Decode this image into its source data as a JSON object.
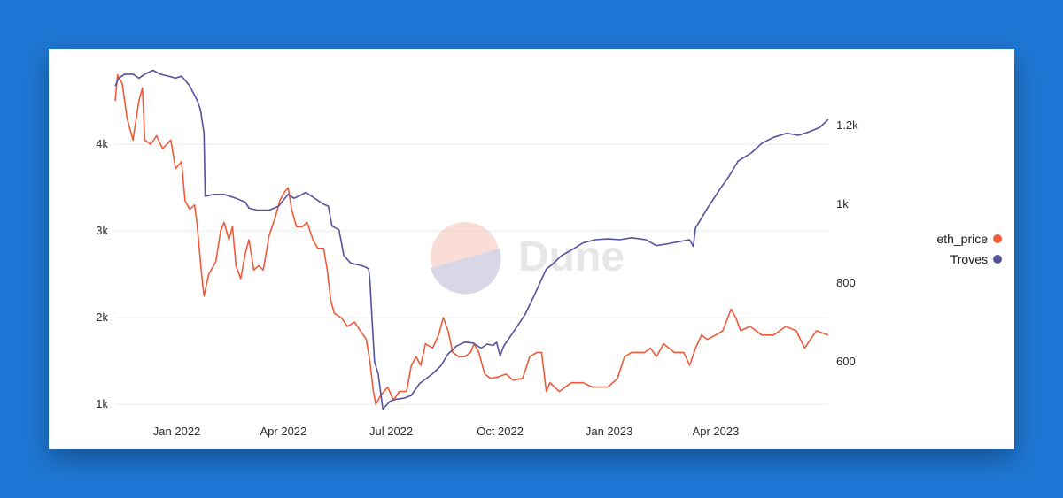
{
  "chart_data": {
    "type": "line",
    "title": "",
    "xlabel": "",
    "ylabel": "",
    "x_range": [
      "2021-11-10",
      "2023-07-05"
    ],
    "x_ticks": [
      {
        "date": "2022-01-01",
        "label": "Jan 2022"
      },
      {
        "date": "2022-04-01",
        "label": "Apr 2022"
      },
      {
        "date": "2022-07-01",
        "label": "Jul 2022"
      },
      {
        "date": "2022-10-01",
        "label": "Oct 2022"
      },
      {
        "date": "2023-01-01",
        "label": "Jan 2023"
      },
      {
        "date": "2023-04-01",
        "label": "Apr 2023"
      }
    ],
    "y_left": {
      "range": [
        900,
        4900
      ],
      "ticks": [
        {
          "value": 1000,
          "label": "1k"
        },
        {
          "value": 2000,
          "label": "2k"
        },
        {
          "value": 3000,
          "label": "3k"
        },
        {
          "value": 4000,
          "label": "4k"
        }
      ]
    },
    "y_right": {
      "range": [
        470,
        1350
      ],
      "ticks": [
        {
          "value": 600,
          "label": "600"
        },
        {
          "value": 800,
          "label": "800"
        },
        {
          "value": 1000,
          "label": "1k"
        },
        {
          "value": 1200,
          "label": "1.2k"
        }
      ]
    },
    "grid": true,
    "legend_position": "right",
    "watermark": "Dune",
    "series": [
      {
        "name": "eth_price",
        "axis": "left",
        "color": "#ef5b3a",
        "points": [
          [
            "2021-11-10",
            4500
          ],
          [
            "2021-11-12",
            4800
          ],
          [
            "2021-11-16",
            4700
          ],
          [
            "2021-11-20",
            4300
          ],
          [
            "2021-11-25",
            4050
          ],
          [
            "2021-11-30",
            4500
          ],
          [
            "2021-12-03",
            4650
          ],
          [
            "2021-12-05",
            4050
          ],
          [
            "2021-12-10",
            4000
          ],
          [
            "2021-12-15",
            4100
          ],
          [
            "2021-12-20",
            3950
          ],
          [
            "2021-12-27",
            4050
          ],
          [
            "2021-12-31",
            3720
          ],
          [
            "2022-01-05",
            3800
          ],
          [
            "2022-01-08",
            3350
          ],
          [
            "2022-01-12",
            3250
          ],
          [
            "2022-01-16",
            3300
          ],
          [
            "2022-01-18",
            3100
          ],
          [
            "2022-01-22",
            2500
          ],
          [
            "2022-01-24",
            2250
          ],
          [
            "2022-01-28",
            2500
          ],
          [
            "2022-02-03",
            2650
          ],
          [
            "2022-02-07",
            3000
          ],
          [
            "2022-02-10",
            3100
          ],
          [
            "2022-02-14",
            2900
          ],
          [
            "2022-02-17",
            3050
          ],
          [
            "2022-02-20",
            2600
          ],
          [
            "2022-02-24",
            2450
          ],
          [
            "2022-02-28",
            2750
          ],
          [
            "2022-03-03",
            2900
          ],
          [
            "2022-03-07",
            2550
          ],
          [
            "2022-03-11",
            2600
          ],
          [
            "2022-03-15",
            2550
          ],
          [
            "2022-03-20",
            2950
          ],
          [
            "2022-03-25",
            3150
          ],
          [
            "2022-03-29",
            3350
          ],
          [
            "2022-04-02",
            3450
          ],
          [
            "2022-04-05",
            3500
          ],
          [
            "2022-04-08",
            3250
          ],
          [
            "2022-04-12",
            3050
          ],
          [
            "2022-04-17",
            3050
          ],
          [
            "2022-04-21",
            3100
          ],
          [
            "2022-04-26",
            2900
          ],
          [
            "2022-04-30",
            2800
          ],
          [
            "2022-05-05",
            2800
          ],
          [
            "2022-05-08",
            2550
          ],
          [
            "2022-05-11",
            2200
          ],
          [
            "2022-05-14",
            2050
          ],
          [
            "2022-05-20",
            2000
          ],
          [
            "2022-05-25",
            1900
          ],
          [
            "2022-05-31",
            1950
          ],
          [
            "2022-06-05",
            1850
          ],
          [
            "2022-06-10",
            1750
          ],
          [
            "2022-06-13",
            1500
          ],
          [
            "2022-06-16",
            1150
          ],
          [
            "2022-06-18",
            1000
          ],
          [
            "2022-06-22",
            1100
          ],
          [
            "2022-06-28",
            1200
          ],
          [
            "2022-07-03",
            1050
          ],
          [
            "2022-07-08",
            1150
          ],
          [
            "2022-07-14",
            1150
          ],
          [
            "2022-07-18",
            1450
          ],
          [
            "2022-07-22",
            1550
          ],
          [
            "2022-07-26",
            1450
          ],
          [
            "2022-07-30",
            1700
          ],
          [
            "2022-08-05",
            1650
          ],
          [
            "2022-08-10",
            1800
          ],
          [
            "2022-08-14",
            2000
          ],
          [
            "2022-08-18",
            1850
          ],
          [
            "2022-08-22",
            1600
          ],
          [
            "2022-08-27",
            1550
          ],
          [
            "2022-09-01",
            1550
          ],
          [
            "2022-09-06",
            1600
          ],
          [
            "2022-09-09",
            1700
          ],
          [
            "2022-09-13",
            1600
          ],
          [
            "2022-09-18",
            1350
          ],
          [
            "2022-09-23",
            1300
          ],
          [
            "2022-09-30",
            1320
          ],
          [
            "2022-10-06",
            1350
          ],
          [
            "2022-10-12",
            1280
          ],
          [
            "2022-10-20",
            1300
          ],
          [
            "2022-10-26",
            1550
          ],
          [
            "2022-11-01",
            1600
          ],
          [
            "2022-11-05",
            1600
          ],
          [
            "2022-11-09",
            1150
          ],
          [
            "2022-11-12",
            1250
          ],
          [
            "2022-11-20",
            1150
          ],
          [
            "2022-11-30",
            1250
          ],
          [
            "2022-12-10",
            1250
          ],
          [
            "2022-12-18",
            1200
          ],
          [
            "2022-12-31",
            1200
          ],
          [
            "2023-01-08",
            1300
          ],
          [
            "2023-01-14",
            1550
          ],
          [
            "2023-01-20",
            1600
          ],
          [
            "2023-01-31",
            1600
          ],
          [
            "2023-02-05",
            1650
          ],
          [
            "2023-02-10",
            1550
          ],
          [
            "2023-02-16",
            1700
          ],
          [
            "2023-02-25",
            1600
          ],
          [
            "2023-03-05",
            1600
          ],
          [
            "2023-03-10",
            1450
          ],
          [
            "2023-03-15",
            1650
          ],
          [
            "2023-03-20",
            1800
          ],
          [
            "2023-03-25",
            1750
          ],
          [
            "2023-04-01",
            1800
          ],
          [
            "2023-04-07",
            1850
          ],
          [
            "2023-04-14",
            2100
          ],
          [
            "2023-04-18",
            2000
          ],
          [
            "2023-04-22",
            1850
          ],
          [
            "2023-04-30",
            1900
          ],
          [
            "2023-05-10",
            1800
          ],
          [
            "2023-05-20",
            1800
          ],
          [
            "2023-05-30",
            1900
          ],
          [
            "2023-06-08",
            1850
          ],
          [
            "2023-06-15",
            1650
          ],
          [
            "2023-06-20",
            1750
          ],
          [
            "2023-06-25",
            1850
          ],
          [
            "2023-07-05",
            1800
          ]
        ]
      },
      {
        "name": "Troves",
        "axis": "right",
        "color": "#54529a",
        "points": [
          [
            "2021-11-10",
            1300
          ],
          [
            "2021-11-13",
            1320
          ],
          [
            "2021-11-18",
            1330
          ],
          [
            "2021-11-25",
            1330
          ],
          [
            "2021-11-30",
            1320
          ],
          [
            "2021-12-05",
            1330
          ],
          [
            "2021-12-12",
            1340
          ],
          [
            "2021-12-18",
            1330
          ],
          [
            "2021-12-25",
            1325
          ],
          [
            "2021-12-31",
            1320
          ],
          [
            "2022-01-05",
            1325
          ],
          [
            "2022-01-08",
            1315
          ],
          [
            "2022-01-12",
            1300
          ],
          [
            "2022-01-18",
            1265
          ],
          [
            "2022-01-21",
            1240
          ],
          [
            "2022-01-24",
            1180
          ],
          [
            "2022-01-25",
            1020
          ],
          [
            "2022-02-01",
            1025
          ],
          [
            "2022-02-10",
            1025
          ],
          [
            "2022-02-20",
            1015
          ],
          [
            "2022-02-28",
            1005
          ],
          [
            "2022-03-03",
            990
          ],
          [
            "2022-03-10",
            985
          ],
          [
            "2022-03-20",
            985
          ],
          [
            "2022-03-28",
            995
          ],
          [
            "2022-04-05",
            1025
          ],
          [
            "2022-04-10",
            1015
          ],
          [
            "2022-04-15",
            1022
          ],
          [
            "2022-04-20",
            1030
          ],
          [
            "2022-04-25",
            1020
          ],
          [
            "2022-04-30",
            1010
          ],
          [
            "2022-05-05",
            1000
          ],
          [
            "2022-05-09",
            995
          ],
          [
            "2022-05-12",
            945
          ],
          [
            "2022-05-18",
            935
          ],
          [
            "2022-05-22",
            870
          ],
          [
            "2022-05-28",
            850
          ],
          [
            "2022-06-05",
            845
          ],
          [
            "2022-06-10",
            840
          ],
          [
            "2022-06-12",
            835
          ],
          [
            "2022-06-13",
            810
          ],
          [
            "2022-06-15",
            700
          ],
          [
            "2022-06-17",
            600
          ],
          [
            "2022-06-20",
            570
          ],
          [
            "2022-06-24",
            480
          ],
          [
            "2022-06-30",
            500
          ],
          [
            "2022-07-05",
            505
          ],
          [
            "2022-07-12",
            508
          ],
          [
            "2022-07-18",
            515
          ],
          [
            "2022-07-25",
            545
          ],
          [
            "2022-08-05",
            570
          ],
          [
            "2022-08-12",
            590
          ],
          [
            "2022-08-18",
            620
          ],
          [
            "2022-08-25",
            640
          ],
          [
            "2022-09-01",
            650
          ],
          [
            "2022-09-08",
            648
          ],
          [
            "2022-09-15",
            635
          ],
          [
            "2022-09-20",
            645
          ],
          [
            "2022-09-25",
            642
          ],
          [
            "2022-09-28",
            650
          ],
          [
            "2022-10-01",
            615
          ],
          [
            "2022-10-04",
            640
          ],
          [
            "2022-10-12",
            675
          ],
          [
            "2022-10-22",
            720
          ],
          [
            "2022-10-30",
            770
          ],
          [
            "2022-11-05",
            810
          ],
          [
            "2022-11-09",
            835
          ],
          [
            "2022-11-15",
            850
          ],
          [
            "2022-11-22",
            870
          ],
          [
            "2022-12-01",
            885
          ],
          [
            "2022-12-10",
            902
          ],
          [
            "2022-12-20",
            910
          ],
          [
            "2022-12-31",
            912
          ],
          [
            "2023-01-10",
            910
          ],
          [
            "2023-01-20",
            915
          ],
          [
            "2023-02-01",
            910
          ],
          [
            "2023-02-10",
            895
          ],
          [
            "2023-02-20",
            900
          ],
          [
            "2023-03-01",
            905
          ],
          [
            "2023-03-10",
            910
          ],
          [
            "2023-03-13",
            893
          ],
          [
            "2023-03-15",
            940
          ],
          [
            "2023-03-25",
            990
          ],
          [
            "2023-04-05",
            1040
          ],
          [
            "2023-04-12",
            1070
          ],
          [
            "2023-04-20",
            1110
          ],
          [
            "2023-05-01",
            1130
          ],
          [
            "2023-05-10",
            1155
          ],
          [
            "2023-05-20",
            1170
          ],
          [
            "2023-05-31",
            1180
          ],
          [
            "2023-06-10",
            1175
          ],
          [
            "2023-06-20",
            1185
          ],
          [
            "2023-06-28",
            1195
          ],
          [
            "2023-07-05",
            1215
          ]
        ]
      }
    ]
  }
}
